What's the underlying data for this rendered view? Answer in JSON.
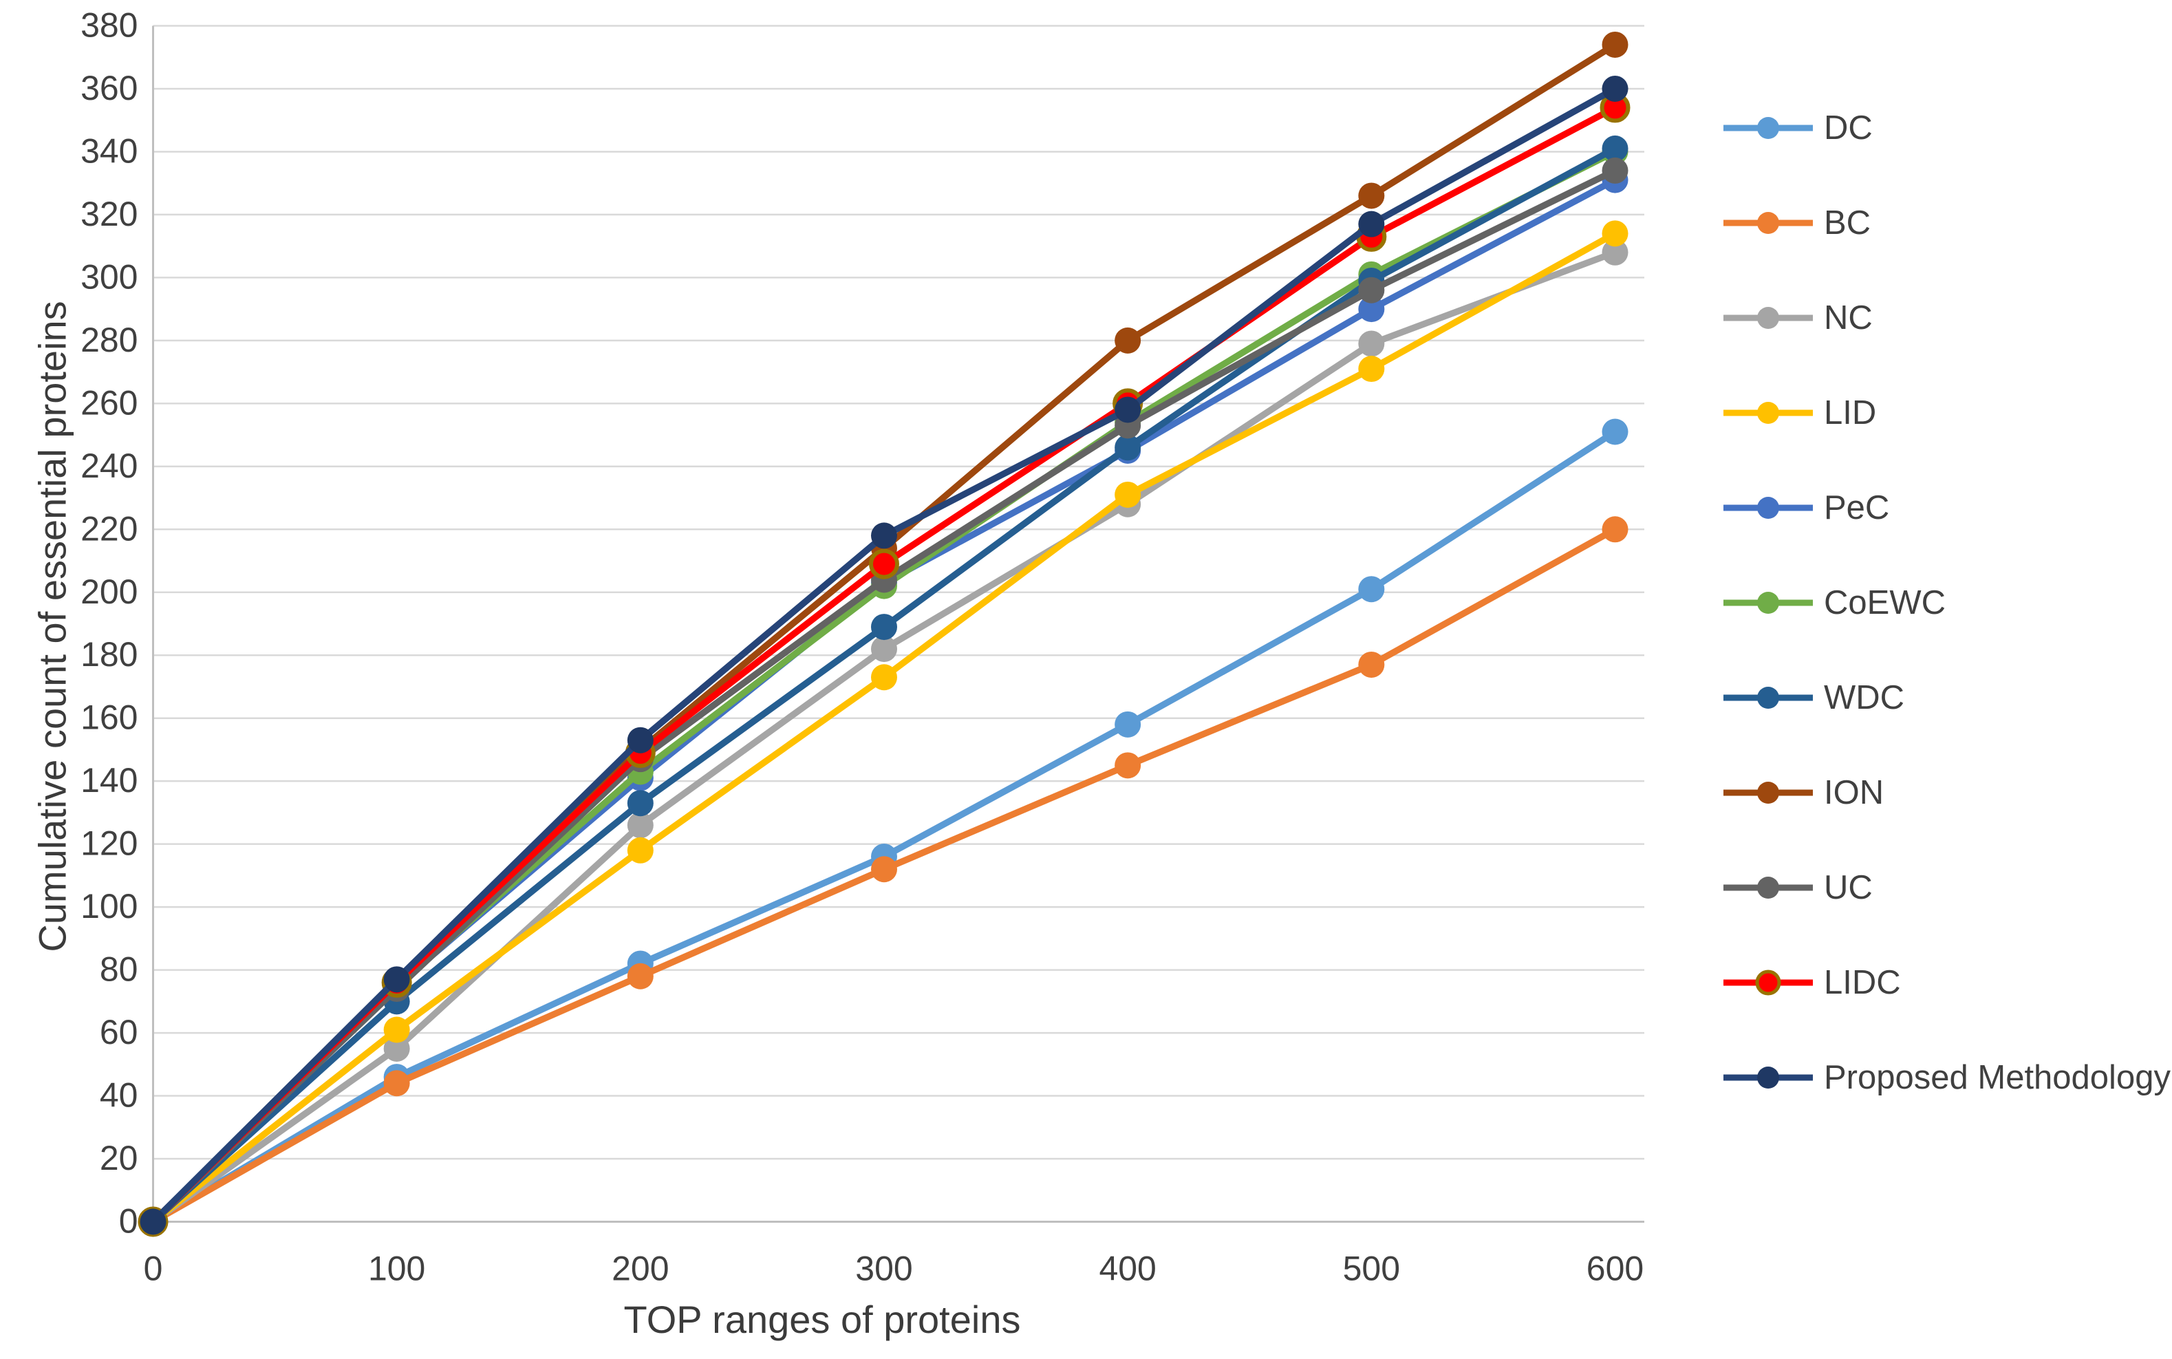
{
  "chart_data": {
    "type": "line",
    "title": "",
    "xlabel": "TOP ranges of proteins",
    "ylabel": "Cumulative count of essential proteins",
    "x": [
      0,
      100,
      200,
      300,
      400,
      500,
      600
    ],
    "xticks": [
      0,
      100,
      200,
      300,
      400,
      500,
      600
    ],
    "xlim": [
      0,
      640
    ],
    "ylim": [
      0,
      380
    ],
    "ytick_step": 20,
    "grid": "horizontal",
    "legend_position": "right",
    "series": [
      {
        "name": "DC",
        "color": "#5B9BD5",
        "marker_color": "#5B9BD5",
        "values": [
          0,
          46,
          82,
          116,
          158,
          201,
          251
        ]
      },
      {
        "name": "BC",
        "color": "#ED7D31",
        "marker_color": "#ED7D31",
        "values": [
          0,
          44,
          78,
          112,
          145,
          177,
          220
        ]
      },
      {
        "name": "NC",
        "color": "#A5A5A5",
        "marker_color": "#A5A5A5",
        "values": [
          0,
          55,
          126,
          182,
          228,
          279,
          308
        ]
      },
      {
        "name": "LID",
        "color": "#FFC000",
        "marker_color": "#FFC000",
        "values": [
          0,
          61,
          118,
          173,
          231,
          271,
          314
        ]
      },
      {
        "name": "PeC",
        "color": "#4472C4",
        "marker_color": "#4472C4",
        "values": [
          0,
          75,
          141,
          203,
          245,
          290,
          331
        ]
      },
      {
        "name": "CoEWC",
        "color": "#70AD47",
        "marker_color": "#70AD47",
        "values": [
          0,
          75,
          143,
          202,
          254,
          301,
          340
        ]
      },
      {
        "name": "WDC",
        "color": "#255E91",
        "marker_color": "#255E91",
        "values": [
          0,
          70,
          133,
          189,
          246,
          299,
          341
        ]
      },
      {
        "name": "ION",
        "color": "#9E480E",
        "marker_color": "#9E480E",
        "values": [
          0,
          76,
          150,
          214,
          280,
          326,
          374
        ]
      },
      {
        "name": "UC",
        "color": "#636363",
        "marker_color": "#636363",
        "values": [
          0,
          74,
          147,
          204,
          253,
          296,
          334
        ]
      },
      {
        "name": "LIDC",
        "color": "#FF0000",
        "marker_color": "#FF0000",
        "marker_stroke": "#997300",
        "values": [
          0,
          76,
          149,
          209,
          260,
          313,
          354
        ]
      },
      {
        "name": "Proposed Methodology",
        "color": "#264478",
        "marker_color": "#1F3864",
        "values": [
          0,
          77,
          153,
          218,
          258,
          317,
          360
        ]
      }
    ]
  },
  "styling": {
    "gridline_color": "#D9D9D9",
    "axis_line_color": "#BFBFBF",
    "tick_label_color": "#404040",
    "axis_title_color": "#3b3b3b"
  }
}
